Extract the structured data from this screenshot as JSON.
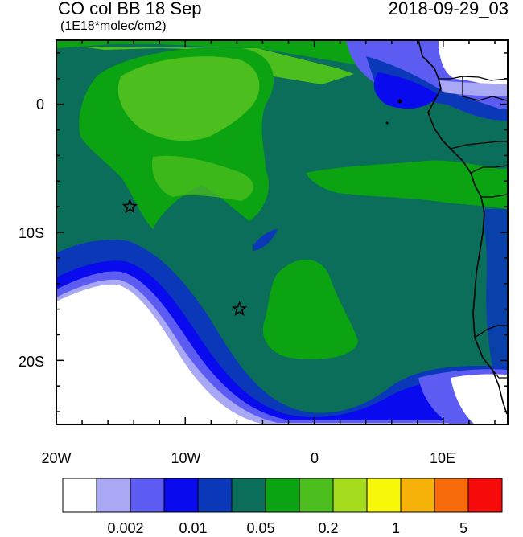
{
  "title": {
    "left": "CO col BB 18 Sep",
    "right": "2018-09-29_03",
    "units": "(1E18*molec/cm2)"
  },
  "axes": {
    "lat_ticks": [
      "0",
      "10S",
      "20S"
    ],
    "lon_ticks": [
      "20W",
      "10W",
      "0",
      "10E"
    ]
  },
  "colorbar": {
    "colors": [
      "#ffffff",
      "#a8a8f5",
      "#5c5cf2",
      "#0a0aef",
      "#0a38b8",
      "#0a6e5a",
      "#0ca312",
      "#4cbf1e",
      "#a6dc1e",
      "#f7f70a",
      "#f7b20a",
      "#f76a0a",
      "#f70a0a"
    ],
    "labels": [
      "0.002",
      "0.01",
      "0.05",
      "0.2",
      "1",
      "5"
    ]
  },
  "markers": [
    {
      "name": "star-marker-1",
      "lon": -14.3,
      "lat": -8.0
    },
    {
      "name": "star-marker-2",
      "lon": -5.8,
      "lat": -16.0
    }
  ],
  "colors": {
    "background_field": "#0a6e5a",
    "enhanced_field": "#0ca312",
    "light_field": "#4cbf1e",
    "blue_edge": "#0a38b8",
    "outer_blue": "#5c5cf2"
  }
}
